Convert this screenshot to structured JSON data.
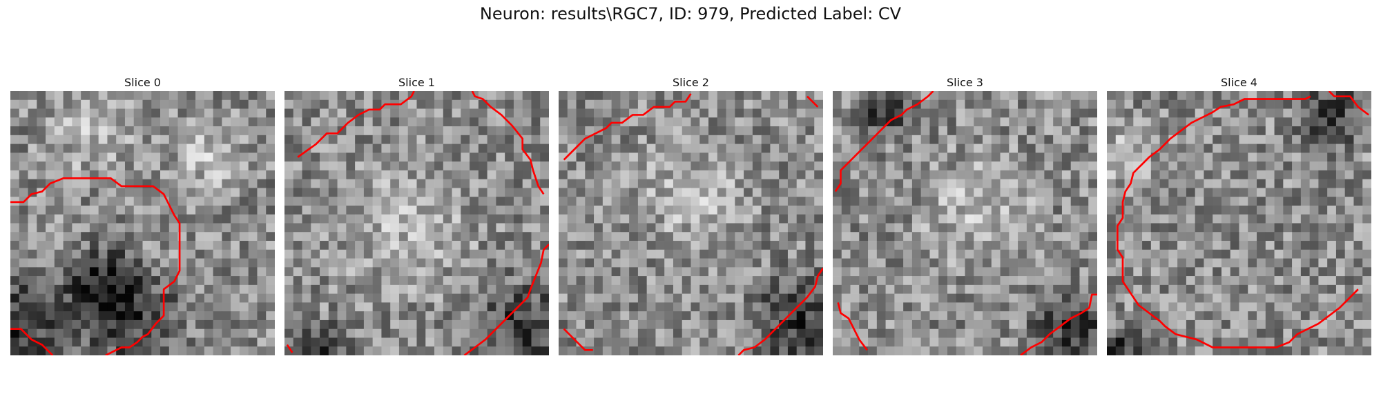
{
  "figure": {
    "title": "Neuron: results\\RGC7, ID: 979, Predicted Label: CV"
  },
  "contour_color": "#ff0000",
  "panels": [
    {
      "title": "Slice 0",
      "seed": 11,
      "dark": [
        [
          0.05,
          0.88,
          0.3
        ],
        [
          0.45,
          0.85,
          0.28
        ],
        [
          0.35,
          0.72,
          0.2
        ]
      ],
      "bright": [
        [
          0.3,
          0.15,
          0.25
        ],
        [
          0.75,
          0.25,
          0.22
        ]
      ],
      "contours": [
        [
          [
            0,
            0.42
          ],
          [
            0.05,
            0.42
          ],
          [
            0.08,
            0.39
          ],
          [
            0.12,
            0.38
          ],
          [
            0.15,
            0.35
          ],
          [
            0.2,
            0.33
          ],
          [
            0.38,
            0.33
          ],
          [
            0.42,
            0.36
          ],
          [
            0.54,
            0.36
          ],
          [
            0.58,
            0.39
          ],
          [
            0.6,
            0.43
          ],
          [
            0.62,
            0.47
          ],
          [
            0.64,
            0.5
          ],
          [
            0.64,
            0.58
          ],
          [
            0.64,
            0.68
          ],
          [
            0.62,
            0.72
          ],
          [
            0.58,
            0.75
          ],
          [
            0.58,
            0.85
          ],
          [
            0.55,
            0.88
          ],
          [
            0.52,
            0.92
          ],
          [
            0.5,
            0.93
          ],
          [
            0.48,
            0.95
          ],
          [
            0.45,
            0.97
          ],
          [
            0.42,
            0.97
          ],
          [
            0.38,
            0.99
          ],
          [
            0.36,
            1.0
          ]
        ],
        [
          [
            0.0,
            0.9
          ],
          [
            0.04,
            0.9
          ],
          [
            0.08,
            0.94
          ],
          [
            0.12,
            0.96
          ],
          [
            0.15,
            0.99
          ],
          [
            0.16,
            1.0
          ]
        ]
      ]
    },
    {
      "title": "Slice 1",
      "seed": 23,
      "dark": [
        [
          0.9,
          0.9,
          0.25
        ],
        [
          0.15,
          0.98,
          0.15
        ]
      ],
      "bright": [
        [
          0.45,
          0.5,
          0.35
        ]
      ],
      "contours": [
        [
          [
            0.05,
            0.25
          ],
          [
            0.12,
            0.2
          ],
          [
            0.16,
            0.16
          ],
          [
            0.2,
            0.16
          ],
          [
            0.24,
            0.12
          ],
          [
            0.28,
            0.09
          ],
          [
            0.32,
            0.07
          ],
          [
            0.36,
            0.07
          ],
          [
            0.38,
            0.05
          ],
          [
            0.44,
            0.05
          ],
          [
            0.48,
            0.02
          ],
          [
            0.49,
            0.0
          ]
        ],
        [
          [
            0.71,
            0.0
          ],
          [
            0.72,
            0.02
          ],
          [
            0.75,
            0.03
          ],
          [
            0.78,
            0.06
          ],
          [
            0.82,
            0.09
          ],
          [
            0.86,
            0.13
          ],
          [
            0.9,
            0.18
          ],
          [
            0.9,
            0.22
          ],
          [
            0.93,
            0.26
          ],
          [
            0.94,
            0.3
          ],
          [
            0.96,
            0.36
          ],
          [
            0.98,
            0.39
          ]
        ],
        [
          [
            1.0,
            0.58
          ],
          [
            0.98,
            0.6
          ],
          [
            0.97,
            0.65
          ],
          [
            0.95,
            0.7
          ],
          [
            0.93,
            0.75
          ],
          [
            0.92,
            0.78
          ],
          [
            0.88,
            0.82
          ],
          [
            0.84,
            0.86
          ],
          [
            0.8,
            0.9
          ],
          [
            0.76,
            0.94
          ],
          [
            0.72,
            0.97
          ],
          [
            0.68,
            1.0
          ]
        ],
        [
          [
            0.01,
            0.96
          ],
          [
            0.03,
            0.99
          ]
        ]
      ]
    },
    {
      "title": "Slice 2",
      "seed": 37,
      "dark": [
        [
          0.92,
          0.88,
          0.28
        ]
      ],
      "bright": [
        [
          0.5,
          0.4,
          0.3
        ]
      ],
      "contours": [
        [
          [
            0.02,
            0.26
          ],
          [
            0.06,
            0.22
          ],
          [
            0.1,
            0.18
          ],
          [
            0.14,
            0.16
          ],
          [
            0.18,
            0.14
          ],
          [
            0.2,
            0.12
          ],
          [
            0.24,
            0.12
          ],
          [
            0.28,
            0.09
          ],
          [
            0.32,
            0.09
          ],
          [
            0.36,
            0.06
          ],
          [
            0.42,
            0.06
          ],
          [
            0.44,
            0.04
          ],
          [
            0.48,
            0.04
          ],
          [
            0.5,
            0.01
          ]
        ],
        [
          [
            0.94,
            0.02
          ],
          [
            0.98,
            0.06
          ]
        ],
        [
          [
            1.0,
            0.67
          ],
          [
            0.98,
            0.7
          ],
          [
            0.97,
            0.74
          ],
          [
            0.94,
            0.78
          ],
          [
            0.92,
            0.8
          ],
          [
            0.88,
            0.84
          ],
          [
            0.85,
            0.87
          ],
          [
            0.82,
            0.9
          ],
          [
            0.78,
            0.94
          ],
          [
            0.74,
            0.97
          ],
          [
            0.7,
            0.98
          ],
          [
            0.68,
            1.0
          ]
        ],
        [
          [
            0.02,
            0.9
          ],
          [
            0.06,
            0.94
          ],
          [
            0.1,
            0.98
          ],
          [
            0.13,
            0.98
          ]
        ]
      ]
    },
    {
      "title": "Slice 3",
      "seed": 51,
      "dark": [
        [
          0.92,
          0.92,
          0.25
        ],
        [
          0.2,
          0.08,
          0.14
        ]
      ],
      "bright": [
        [
          0.55,
          0.45,
          0.3
        ]
      ],
      "contours": [
        [
          [
            0.01,
            0.38
          ],
          [
            0.03,
            0.35
          ],
          [
            0.03,
            0.3
          ],
          [
            0.06,
            0.27
          ],
          [
            0.1,
            0.23
          ],
          [
            0.14,
            0.19
          ],
          [
            0.18,
            0.15
          ],
          [
            0.22,
            0.11
          ],
          [
            0.26,
            0.09
          ],
          [
            0.28,
            0.07
          ],
          [
            0.32,
            0.05
          ],
          [
            0.36,
            0.02
          ],
          [
            0.38,
            0.0
          ]
        ],
        [
          [
            1.0,
            0.77
          ],
          [
            0.98,
            0.77
          ],
          [
            0.97,
            0.82
          ],
          [
            0.94,
            0.84
          ],
          [
            0.9,
            0.86
          ],
          [
            0.86,
            0.89
          ],
          [
            0.82,
            0.92
          ],
          [
            0.79,
            0.95
          ],
          [
            0.75,
            0.97
          ],
          [
            0.71,
            1.0
          ]
        ],
        [
          [
            0.02,
            0.8
          ],
          [
            0.03,
            0.84
          ],
          [
            0.06,
            0.86
          ],
          [
            0.08,
            0.9
          ],
          [
            0.1,
            0.94
          ],
          [
            0.13,
            0.98
          ]
        ]
      ]
    },
    {
      "title": "Slice 4",
      "seed": 67,
      "dark": [
        [
          0.05,
          0.98,
          0.12
        ],
        [
          0.85,
          0.1,
          0.18
        ]
      ],
      "bright": [
        [
          0.05,
          0.25,
          0.18
        ]
      ],
      "contours": [
        [
          [
            0.77,
            0.02
          ],
          [
            0.75,
            0.03
          ],
          [
            0.7,
            0.03
          ],
          [
            0.52,
            0.03
          ],
          [
            0.48,
            0.05
          ],
          [
            0.43,
            0.06
          ],
          [
            0.4,
            0.08
          ],
          [
            0.36,
            0.1
          ],
          [
            0.32,
            0.12
          ],
          [
            0.28,
            0.15
          ],
          [
            0.24,
            0.18
          ],
          [
            0.2,
            0.22
          ],
          [
            0.16,
            0.25
          ],
          [
            0.13,
            0.28
          ],
          [
            0.1,
            0.31
          ],
          [
            0.09,
            0.35
          ],
          [
            0.07,
            0.38
          ],
          [
            0.06,
            0.42
          ],
          [
            0.06,
            0.48
          ],
          [
            0.04,
            0.51
          ],
          [
            0.04,
            0.6
          ],
          [
            0.06,
            0.63
          ],
          [
            0.06,
            0.72
          ],
          [
            0.08,
            0.75
          ],
          [
            0.1,
            0.78
          ],
          [
            0.12,
            0.81
          ],
          [
            0.16,
            0.84
          ],
          [
            0.2,
            0.87
          ],
          [
            0.22,
            0.89
          ],
          [
            0.26,
            0.92
          ],
          [
            0.34,
            0.94
          ],
          [
            0.4,
            0.97
          ],
          [
            0.52,
            0.97
          ],
          [
            0.58,
            0.97
          ],
          [
            0.64,
            0.97
          ],
          [
            0.69,
            0.95
          ],
          [
            0.72,
            0.92
          ],
          [
            0.76,
            0.9
          ],
          [
            0.8,
            0.88
          ],
          [
            0.84,
            0.85
          ],
          [
            0.88,
            0.82
          ],
          [
            0.92,
            0.78
          ],
          [
            0.95,
            0.75
          ]
        ],
        [
          [
            0.84,
            0.0
          ],
          [
            0.86,
            0.02
          ],
          [
            0.92,
            0.02
          ],
          [
            0.95,
            0.06
          ],
          [
            0.99,
            0.09
          ]
        ]
      ]
    }
  ]
}
